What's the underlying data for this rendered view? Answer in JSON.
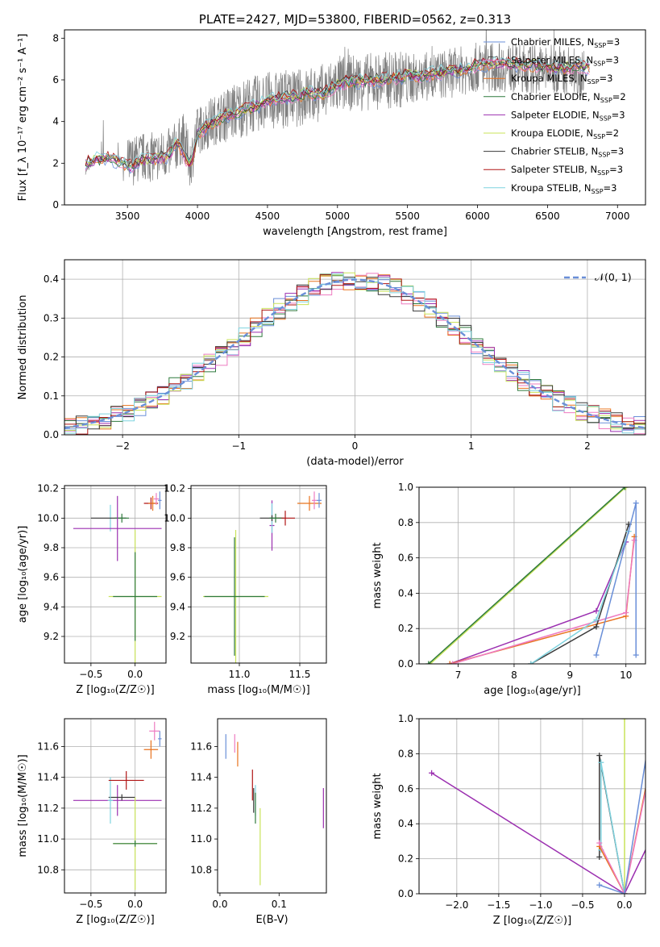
{
  "chart_data": [
    {
      "id": "spectrum",
      "type": "line",
      "title": "PLATE=2427, MJD=53800, FIBERID=0562, z=0.313",
      "xlabel": "wavelength [Angstrom, rest frame]",
      "ylabel": "Flux [f_λ 10⁻¹⁷ erg cm⁻² s⁻¹ A⁻¹]",
      "xlim": [
        3050,
        7200
      ],
      "ylim": [
        0,
        8.4
      ],
      "xticks": [
        3500,
        4000,
        4500,
        5000,
        5500,
        6000,
        6500,
        7000
      ],
      "yticks": [
        0,
        2,
        4,
        6,
        8
      ],
      "grid": false,
      "legend_position": "top-right",
      "legend": [
        {
          "name": "Chabrier MILES, N",
          "sub": "SSP",
          "suffix": "=3",
          "color": "#6a8fd8"
        },
        {
          "name": "Salpeter MILES, N",
          "sub": "SSP",
          "suffix": "=3",
          "color": "#ee7bc1"
        },
        {
          "name": "Kroupa MILES, N",
          "sub": "SSP",
          "suffix": "=3",
          "color": "#e8731f"
        },
        {
          "name": "Chabrier ELODIE, N",
          "sub": "SSP",
          "suffix": "=2",
          "color": "#2f7a3d"
        },
        {
          "name": "Salpeter ELODIE, N",
          "sub": "SSP",
          "suffix": "=3",
          "color": "#9b2fb0"
        },
        {
          "name": "Kroupa ELODIE, N",
          "sub": "SSP",
          "suffix": "=2",
          "color": "#c9e35a"
        },
        {
          "name": "Chabrier STELIB, N",
          "sub": "SSP",
          "suffix": "=3",
          "color": "#3a3a3a"
        },
        {
          "name": "Salpeter STELIB, N",
          "sub": "SSP",
          "suffix": "=3",
          "color": "#b01515"
        },
        {
          "name": "Kroupa STELIB, N",
          "sub": "SSP",
          "suffix": "=3",
          "color": "#7fd3df"
        }
      ],
      "data_color": "#808080",
      "continuum": {
        "x": [
          3200,
          3250,
          3300,
          3400,
          3500,
          3600,
          3700,
          3800,
          3900,
          3950,
          4000,
          4100,
          4300,
          4500,
          4700,
          4900,
          5000,
          5200,
          5400,
          5600,
          5800,
          6000,
          6200,
          6400,
          6600,
          6800,
          7000
        ],
        "y": [
          1.6,
          2.0,
          2.2,
          2.3,
          2.0,
          2.3,
          2.3,
          2.5,
          3.2,
          2.0,
          3.5,
          4.0,
          4.6,
          5.0,
          5.1,
          5.4,
          5.8,
          5.9,
          6.0,
          6.1,
          6.3,
          6.6,
          6.6,
          6.5,
          6.5,
          6.4,
          6.3
        ]
      },
      "models": {
        "x": [
          3200,
          3300,
          3400,
          3500,
          3600,
          3700,
          3800,
          3850,
          3900,
          3950,
          4000,
          4100,
          4200,
          4300,
          4400,
          4500,
          4600,
          4700,
          4800,
          4900,
          5000,
          5100,
          5200,
          5300,
          5400,
          5500,
          5600,
          5700,
          5800,
          5900,
          6000,
          6100,
          6200,
          6300,
          6400,
          6500,
          6600,
          6700,
          6800
        ],
        "y": [
          2.0,
          2.2,
          2.2,
          1.8,
          2.1,
          2.2,
          2.4,
          3.0,
          2.5,
          1.8,
          3.4,
          3.9,
          4.3,
          4.5,
          4.7,
          5.0,
          5.1,
          5.2,
          5.4,
          5.3,
          5.8,
          5.9,
          6.0,
          6.0,
          6.1,
          6.2,
          6.2,
          6.3,
          6.4,
          6.5,
          6.7,
          6.8,
          6.8,
          6.7,
          6.7,
          6.6,
          6.6,
          6.6,
          6.6
        ]
      }
    },
    {
      "id": "residuals",
      "type": "line",
      "xlabel": "(data-model)/error",
      "ylabel": "Normed distribution",
      "xlim": [
        -2.5,
        2.5
      ],
      "ylim": [
        0,
        0.45
      ],
      "xticks": [
        -2,
        -1,
        0,
        1,
        2
      ],
      "yticks": [
        0.0,
        0.1,
        0.2,
        0.3,
        0.4
      ],
      "grid": true,
      "legend_position": "top-right",
      "gaussian_label": "𝒩(0, 1)",
      "gaussian_color": "#6a8fd8",
      "bin_width": 0.1
    },
    {
      "id": "z-age",
      "type": "scatter",
      "xlabel": "Z [log₁₀(Z/Z☉)]",
      "ylabel": "age  [log₁₀(age/yr)]",
      "xlim": [
        -0.8,
        0.35
      ],
      "ylim": [
        9.02,
        10.22
      ],
      "xticks": [
        -0.5,
        0.0
      ],
      "yticks": [
        9.2,
        9.4,
        9.6,
        9.8,
        10.0,
        10.2
      ],
      "grid": true,
      "points": [
        {
          "x": -0.28,
          "y": 10.0,
          "xerr": 0.0,
          "yerr": 0.09,
          "color": "#7fd3df"
        },
        {
          "x": -0.3,
          "y": 10.0,
          "xerr": 0.2,
          "yerr": 0.0,
          "color": "#3a3a3a"
        },
        {
          "x": -0.15,
          "y": 10.0,
          "xerr": 0.08,
          "yerr": 0.03,
          "color": "#2f7a3d"
        },
        {
          "x": -0.2,
          "y": 9.93,
          "xerr": 0.5,
          "yerr": 0.22,
          "color": "#9b2fb0"
        },
        {
          "x": 0.0,
          "y": 9.47,
          "xerr": 0.3,
          "yerr": 0.45,
          "color": "#c9e35a"
        },
        {
          "x": 0.0,
          "y": 9.47,
          "xerr": 0.25,
          "yerr": 0.3,
          "color": "#2f7a3d"
        },
        {
          "x": 0.18,
          "y": 10.1,
          "xerr": 0.08,
          "yerr": 0.04,
          "color": "#b01515"
        },
        {
          "x": 0.2,
          "y": 10.1,
          "xerr": 0.05,
          "yerr": 0.05,
          "color": "#e8731f"
        },
        {
          "x": 0.24,
          "y": 10.13,
          "xerr": 0.03,
          "yerr": 0.04,
          "color": "#ee7bc1"
        },
        {
          "x": 0.28,
          "y": 10.12,
          "xerr": 0.02,
          "yerr": 0.06,
          "color": "#6a8fd8"
        }
      ]
    },
    {
      "id": "mass-age",
      "type": "scatter",
      "xlabel": "mass [log₁₀(M/M☉)]",
      "ylabel": "",
      "xlim": [
        10.6,
        11.72
      ],
      "ylim": [
        9.02,
        10.22
      ],
      "xticks": [
        11.0,
        11.5
      ],
      "yticks": [
        9.2,
        9.4,
        9.6,
        9.8,
        10.0,
        10.2
      ],
      "grid": true,
      "points": [
        {
          "x": 10.97,
          "y": 9.47,
          "xerr": 0.27,
          "yerr": 0.45,
          "color": "#c9e35a"
        },
        {
          "x": 10.96,
          "y": 9.47,
          "xerr": 0.25,
          "yerr": 0.4,
          "color": "#2f7a3d"
        },
        {
          "x": 11.27,
          "y": 9.95,
          "xerr": 0.02,
          "yerr": 0.17,
          "color": "#9b2fb0"
        },
        {
          "x": 11.27,
          "y": 10.0,
          "xerr": 0.02,
          "yerr": 0.1,
          "color": "#7fd3df"
        },
        {
          "x": 11.27,
          "y": 10.0,
          "xerr": 0.1,
          "yerr": 0.02,
          "color": "#3a3a3a"
        },
        {
          "x": 11.38,
          "y": 10.0,
          "xerr": 0.08,
          "yerr": 0.05,
          "color": "#b01515"
        },
        {
          "x": 11.3,
          "y": 10.0,
          "xerr": 0.05,
          "yerr": 0.03,
          "color": "#2f7a3d"
        },
        {
          "x": 11.58,
          "y": 10.1,
          "xerr": 0.1,
          "yerr": 0.05,
          "color": "#e8731f"
        },
        {
          "x": 11.62,
          "y": 10.12,
          "xerr": 0.02,
          "yerr": 0.06,
          "color": "#ee7bc1"
        },
        {
          "x": 11.66,
          "y": 10.12,
          "xerr": 0.02,
          "yerr": 0.05,
          "color": "#6a8fd8"
        }
      ]
    },
    {
      "id": "age-weight",
      "type": "line",
      "xlabel": "age  [log₁₀(age/yr)]",
      "ylabel": "mass weight",
      "xlim": [
        6.3,
        10.35
      ],
      "ylim": [
        0,
        1.0
      ],
      "xticks": [
        7,
        8,
        9,
        10
      ],
      "yticks": [
        0.0,
        0.2,
        0.4,
        0.6,
        0.8,
        1.0
      ],
      "grid": true,
      "series": [
        {
          "color": "#c9e35a",
          "x": [
            6.5,
            10.0
          ],
          "y": [
            0.0,
            1.0
          ]
        },
        {
          "color": "#2f7a3d",
          "x": [
            6.47,
            9.98
          ],
          "y": [
            0.0,
            1.0
          ]
        },
        {
          "color": "#9b2fb0",
          "x": [
            6.85,
            9.47,
            10.0
          ],
          "y": [
            0.0,
            0.3,
            0.69
          ]
        },
        {
          "color": "#e8731f",
          "x": [
            6.85,
            10.0,
            10.15
          ],
          "y": [
            0.0,
            0.27,
            0.72
          ]
        },
        {
          "color": "#ee7bc1",
          "x": [
            6.9,
            10.0,
            10.15
          ],
          "y": [
            0.0,
            0.29,
            0.7
          ]
        },
        {
          "color": "#3a3a3a",
          "x": [
            8.3,
            9.47,
            10.05
          ],
          "y": [
            0.0,
            0.21,
            0.79
          ]
        },
        {
          "color": "#7fd3df",
          "x": [
            8.3,
            9.47,
            10.05
          ],
          "y": [
            0.0,
            0.25,
            0.75
          ]
        },
        {
          "color": "#6a8fd8",
          "x": [
            9.47,
            10.18,
            10.18
          ],
          "y": [
            0.05,
            0.91,
            0.05
          ]
        }
      ]
    },
    {
      "id": "z-mass",
      "type": "scatter",
      "xlabel": "Z [log₁₀(Z/Z☉)]",
      "ylabel": "mass [log₁₀(M/M☉)]",
      "xlim": [
        -0.8,
        0.35
      ],
      "ylim": [
        10.65,
        11.78
      ],
      "xticks": [
        -0.5,
        0.0
      ],
      "yticks": [
        10.8,
        11.0,
        11.2,
        11.4,
        11.6
      ],
      "grid": true,
      "points": [
        {
          "x": -0.2,
          "y": 11.25,
          "xerr": 0.5,
          "yerr": 0.1,
          "color": "#9b2fb0"
        },
        {
          "x": -0.15,
          "y": 11.27,
          "xerr": 0.15,
          "yerr": 0.02,
          "color": "#3a3a3a"
        },
        {
          "x": -0.28,
          "y": 11.25,
          "xerr": 0.03,
          "yerr": 0.15,
          "color": "#7fd3df"
        },
        {
          "x": -0.1,
          "y": 11.38,
          "xerr": 0.2,
          "yerr": 0.06,
          "color": "#b01515"
        },
        {
          "x": 0.0,
          "y": 10.97,
          "xerr": 0.25,
          "yerr": 0.3,
          "color": "#c9e35a"
        },
        {
          "x": 0.0,
          "y": 10.97,
          "xerr": 0.25,
          "yerr": 0.02,
          "color": "#2f7a3d"
        },
        {
          "x": 0.18,
          "y": 11.58,
          "xerr": 0.08,
          "yerr": 0.06,
          "color": "#e8731f"
        },
        {
          "x": 0.22,
          "y": 11.7,
          "xerr": 0.06,
          "yerr": 0.06,
          "color": "#ee7bc1"
        },
        {
          "x": 0.28,
          "y": 11.65,
          "xerr": 0.02,
          "yerr": 0.05,
          "color": "#6a8fd8"
        }
      ]
    },
    {
      "id": "ebv-mass",
      "type": "scatter",
      "xlabel": "E(B-V)",
      "ylabel": "",
      "xlim": [
        -0.004,
        0.18
      ],
      "ylim": [
        10.65,
        11.78
      ],
      "xticks": [
        0.0,
        0.1
      ],
      "yticks": [
        10.8,
        11.0,
        11.2,
        11.4,
        11.6
      ],
      "grid": false,
      "points": [
        {
          "x": 0.01,
          "y": 11.6,
          "xerr": 0.0,
          "yerr": 0.08,
          "color": "#6a8fd8"
        },
        {
          "x": 0.025,
          "y": 11.62,
          "xerr": 0.0,
          "yerr": 0.06,
          "color": "#ee7bc1"
        },
        {
          "x": 0.03,
          "y": 11.55,
          "xerr": 0.0,
          "yerr": 0.08,
          "color": "#e8731f"
        },
        {
          "x": 0.055,
          "y": 11.35,
          "xerr": 0.0,
          "yerr": 0.1,
          "color": "#b01515"
        },
        {
          "x": 0.057,
          "y": 11.25,
          "xerr": 0.0,
          "yerr": 0.08,
          "color": "#3a3a3a"
        },
        {
          "x": 0.06,
          "y": 11.25,
          "xerr": 0.0,
          "yerr": 0.1,
          "color": "#7fd3df"
        },
        {
          "x": 0.06,
          "y": 11.2,
          "xerr": 0.0,
          "yerr": 0.1,
          "color": "#2f7a3d"
        },
        {
          "x": 0.068,
          "y": 10.95,
          "xerr": 0.0,
          "yerr": 0.25,
          "color": "#c9e35a"
        },
        {
          "x": 0.175,
          "y": 11.2,
          "xerr": 0.0,
          "yerr": 0.13,
          "color": "#9b2fb0"
        }
      ]
    },
    {
      "id": "z-weight",
      "type": "line",
      "xlabel": "Z [log₁₀(Z/Z☉)]",
      "ylabel": "mass weight",
      "xlim": [
        -2.45,
        0.25
      ],
      "ylim": [
        0,
        1.0
      ],
      "xticks": [
        -2.0,
        -1.5,
        -1.0,
        -0.5,
        0.0
      ],
      "yticks": [
        0.0,
        0.2,
        0.4,
        0.6,
        0.8,
        1.0
      ],
      "grid": true,
      "series": [
        {
          "color": "#9b2fb0",
          "x": [
            -2.3,
            0.0,
            0.3
          ],
          "y": [
            0.69,
            0.0,
            0.3
          ]
        },
        {
          "color": "#c9e35a",
          "x": [
            0.0,
            0.0
          ],
          "y": [
            0.0,
            1.0
          ]
        },
        {
          "color": "#3a3a3a",
          "x": [
            -0.3,
            -0.3,
            0.0
          ],
          "y": [
            0.21,
            0.79,
            0.0
          ]
        },
        {
          "color": "#7fd3df",
          "x": [
            -0.28,
            -0.28,
            0.0
          ],
          "y": [
            0.25,
            0.75,
            0.0
          ]
        },
        {
          "color": "#e8731f",
          "x": [
            -0.3,
            0.0,
            0.3
          ],
          "y": [
            0.27,
            0.0,
            0.72
          ]
        },
        {
          "color": "#ee7bc1",
          "x": [
            -0.3,
            0.0,
            0.3
          ],
          "y": [
            0.29,
            0.0,
            0.7
          ]
        },
        {
          "color": "#6a8fd8",
          "x": [
            -0.3,
            0.0,
            0.3
          ],
          "y": [
            0.05,
            0.0,
            0.91
          ]
        }
      ]
    }
  ]
}
